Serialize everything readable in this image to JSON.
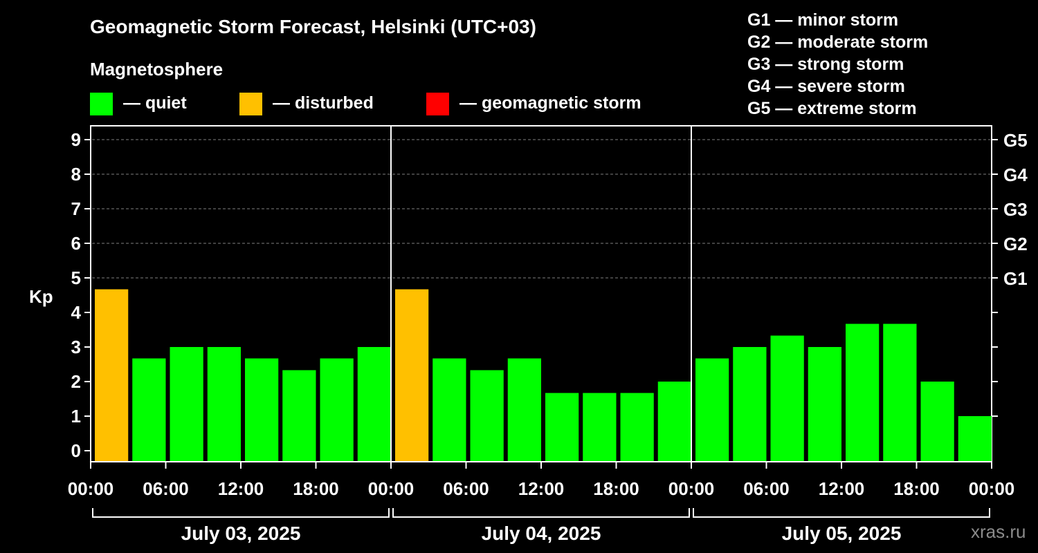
{
  "title": "Geomagnetic Storm Forecast, Helsinki (UTC+03)",
  "subtitle": "Magnetosphere",
  "legend": [
    {
      "label": "— quiet",
      "color": "#00ff00"
    },
    {
      "label": "— disturbed",
      "color": "#ffc000"
    },
    {
      "label": "— geomagnetic storm",
      "color": "#ff0000"
    }
  ],
  "g_legend": [
    "G1 — minor storm",
    "G2 — moderate storm",
    "G3 — strong storm",
    "G4 — severe storm",
    "G5 — extreme storm"
  ],
  "watermark": "xras.ru",
  "chart_data": {
    "type": "bar",
    "ylabel": "Kp",
    "ylim": [
      0,
      9
    ],
    "yticks": [
      0,
      1,
      2,
      3,
      4,
      5,
      6,
      7,
      8,
      9
    ],
    "right_axis": [
      {
        "kp": 5,
        "label": "G1"
      },
      {
        "kp": 6,
        "label": "G2"
      },
      {
        "kp": 7,
        "label": "G3"
      },
      {
        "kp": 8,
        "label": "G4"
      },
      {
        "kp": 9,
        "label": "G5"
      }
    ],
    "grid_from_kp": 5,
    "x_tick_labels": [
      "00:00",
      "06:00",
      "12:00",
      "18:00",
      "00:00",
      "06:00",
      "12:00",
      "18:00",
      "00:00",
      "06:00",
      "12:00",
      "18:00",
      "00:00"
    ],
    "days": [
      {
        "date": "July 03, 2025",
        "values": [
          4.67,
          2.67,
          3.0,
          3.0,
          2.67,
          2.33,
          2.67,
          3.0
        ]
      },
      {
        "date": "July 04, 2025",
        "values": [
          4.67,
          2.67,
          2.33,
          2.67,
          1.67,
          1.67,
          1.67,
          2.0
        ]
      },
      {
        "date": "July 05, 2025",
        "values": [
          2.67,
          3.0,
          3.33,
          3.0,
          3.67,
          3.67,
          2.0,
          1.0
        ]
      }
    ],
    "thresholds": {
      "disturbed": 4,
      "storm": 5
    },
    "colors": {
      "quiet": "#00ff00",
      "disturbed": "#ffc000",
      "storm": "#ff0000",
      "grid": "#808080"
    }
  }
}
